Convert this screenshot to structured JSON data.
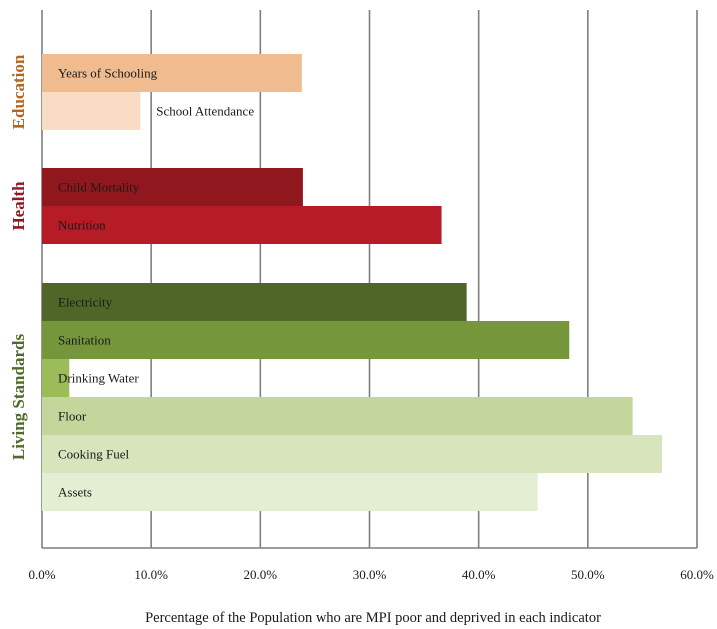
{
  "chart_data": {
    "type": "bar",
    "orientation": "horizontal",
    "xlabel": "Percentage of the Population who are MPI poor and deprived in each indicator",
    "xlim": [
      0,
      60
    ],
    "xticks": [
      "0.0%",
      "10.0%",
      "20.0%",
      "30.0%",
      "40.0%",
      "50.0%",
      "60.0%"
    ],
    "grid": "vertical",
    "groups": [
      {
        "name": "Education",
        "color": "#b5651d",
        "bars": [
          {
            "label": "Years of Schooling",
            "value": 23.8,
            "color": "#f0bc8f"
          },
          {
            "label": "School Attendance",
            "value": 9.0,
            "color": "#f8dcc3"
          }
        ]
      },
      {
        "name": "Health",
        "color": "#8b1a22",
        "bars": [
          {
            "label": "Child Mortality",
            "value": 23.9,
            "color": "#91171f"
          },
          {
            "label": "Nutrition",
            "value": 36.6,
            "color": "#b51c25"
          }
        ]
      },
      {
        "name": "Living Standards",
        "color": "#4f6a2a",
        "bars": [
          {
            "label": "Electricity",
            "value": 38.9,
            "color": "#4f6628"
          },
          {
            "label": "Sanitation",
            "value": 48.3,
            "color": "#76963b"
          },
          {
            "label": "Drinking Water",
            "value": 2.5,
            "color": "#9cbc5a"
          },
          {
            "label": "Floor",
            "value": 54.1,
            "color": "#c3d69b"
          },
          {
            "label": "Cooking Fuel",
            "value": 56.8,
            "color": "#d7e4bc"
          },
          {
            "label": "Assets",
            "value": 45.4,
            "color": "#e4eed3"
          }
        ]
      }
    ]
  }
}
